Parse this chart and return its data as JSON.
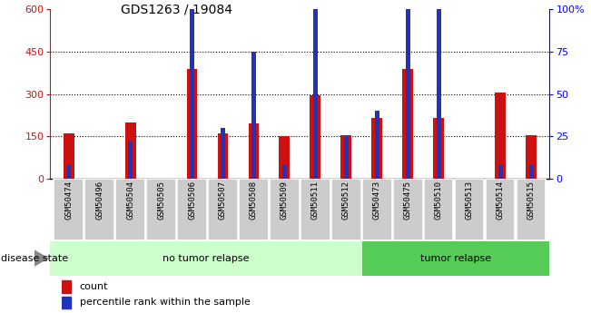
{
  "title": "GDS1263 / 19084",
  "samples": [
    "GSM50474",
    "GSM50496",
    "GSM50504",
    "GSM50505",
    "GSM50506",
    "GSM50507",
    "GSM50508",
    "GSM50509",
    "GSM50511",
    "GSM50512",
    "GSM50473",
    "GSM50475",
    "GSM50510",
    "GSM50513",
    "GSM50514",
    "GSM50515"
  ],
  "count_values": [
    160,
    0,
    200,
    0,
    390,
    160,
    195,
    150,
    295,
    155,
    215,
    390,
    215,
    0,
    305,
    155
  ],
  "percentile_values": [
    48,
    0,
    132,
    0,
    960,
    180,
    450,
    48,
    720,
    150,
    240,
    960,
    600,
    0,
    48,
    48
  ],
  "no_tumor_count": 10,
  "tumor_count": 6,
  "ylim_left": [
    0,
    600
  ],
  "ylim_right": [
    0,
    100
  ],
  "yticks_left": [
    0,
    150,
    300,
    450,
    600
  ],
  "yticks_right": [
    0,
    25,
    50,
    75,
    100
  ],
  "ytick_right_labels": [
    "0",
    "25",
    "50",
    "75",
    "100%"
  ],
  "bar_color_red": "#cc1111",
  "bar_color_blue": "#2233bb",
  "no_tumor_bg": "#ccffcc",
  "tumor_bg": "#55cc55",
  "label_bg": "#cccccc",
  "disease_state_label": "disease state",
  "no_tumor_label": "no tumor relapse",
  "tumor_label": "tumor relapse",
  "legend_count": "count",
  "legend_percentile": "percentile rank within the sample",
  "bar_width": 0.35,
  "blue_bar_width": 0.15
}
